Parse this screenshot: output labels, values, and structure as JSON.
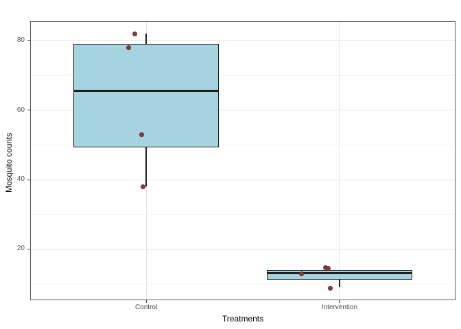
{
  "chart_data": {
    "type": "boxplot",
    "title": "",
    "xlabel": "Treatments",
    "ylabel": "Mosquito counts",
    "categories": [
      "Control",
      "Intervention"
    ],
    "ylim": [
      5.3,
      85.6
    ],
    "yticks_major": [
      20,
      40,
      60,
      80
    ],
    "yticks_minor": [
      10,
      30,
      50,
      70
    ],
    "grid": "major-and-minor",
    "legend": "none",
    "series": [
      {
        "name": "Control",
        "values": [
          38,
          53,
          78,
          82
        ],
        "box": {
          "q1": 49.25,
          "median": 65.5,
          "q3": 79,
          "whisker_low": 38,
          "whisker_high": 82
        }
      },
      {
        "name": "Intervention",
        "values": [
          9,
          12,
          14,
          14
        ],
        "box": {
          "q1": 11.25,
          "median": 13,
          "q3": 14,
          "whisker_low": 9,
          "whisker_high": 14
        }
      }
    ],
    "points": [
      {
        "category": "Control",
        "value": 82,
        "jitter_x": -0.058,
        "jitter_y": 0.0
      },
      {
        "category": "Control",
        "value": 78,
        "jitter_x": -0.091,
        "jitter_y": 0.0
      },
      {
        "category": "Control",
        "value": 53,
        "jitter_x": -0.023,
        "jitter_y": 0.0
      },
      {
        "category": "Control",
        "value": 38,
        "jitter_x": -0.016,
        "jitter_y": -0.1
      },
      {
        "category": "Intervention",
        "value": 14,
        "jitter_x": -0.073,
        "jitter_y": 0.7
      },
      {
        "category": "Intervention",
        "value": 14,
        "jitter_x": -0.059,
        "jitter_y": 0.4
      },
      {
        "category": "Intervention",
        "value": 12,
        "jitter_x": -0.197,
        "jitter_y": 0.8
      },
      {
        "category": "Intervention",
        "value": 9,
        "jitter_x": -0.048,
        "jitter_y": -0.2
      }
    ],
    "colors": {
      "box_fill": "#a6d3e0",
      "box_stroke": "#1e1e1e",
      "point_fill": "#8b3a3a",
      "point_stroke": "#6e2a2a",
      "grid_major": "#e4e4e4",
      "grid_minor": "#f1f1f1",
      "panel_border": "#5a5a5a",
      "tick_label": "#4d4d4d",
      "axis_title": "#000000",
      "tick_mark": "#333333",
      "background": "#ffffff"
    }
  }
}
